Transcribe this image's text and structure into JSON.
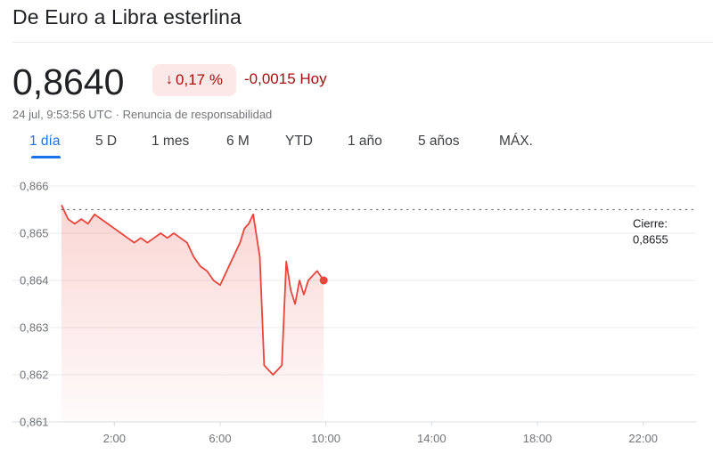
{
  "header": {
    "title": "De Euro a Libra esterlina",
    "price": "0,8640",
    "pct_change": "0,17 %",
    "pct_arrow": "↓",
    "abs_change": "-0,0015 Hoy",
    "timestamp": "24 jul, 9:53:56 UTC",
    "separator": "·",
    "disclaimer": "Renuncia de responsabilidad"
  },
  "tabs": [
    {
      "label": "1 día",
      "active": true
    },
    {
      "label": "5 D",
      "active": false
    },
    {
      "label": "1 mes",
      "active": false
    },
    {
      "label": "6 M",
      "active": false
    },
    {
      "label": "YTD",
      "active": false
    },
    {
      "label": "1 año",
      "active": false
    },
    {
      "label": "5 años",
      "active": false
    },
    {
      "label": "MÁX.",
      "active": false
    }
  ],
  "colors": {
    "negative": "#a50e0e",
    "line": "#e8453c",
    "accent": "#1a73e8"
  },
  "chart_data": {
    "type": "area",
    "title": "",
    "xlabel": "",
    "ylabel": "",
    "ylim": [
      0.861,
      0.866
    ],
    "xlim_hours": [
      0,
      24
    ],
    "yticks": [
      {
        "value": 0.866,
        "label": "0,866"
      },
      {
        "value": 0.865,
        "label": "0,865"
      },
      {
        "value": 0.864,
        "label": "0,864"
      },
      {
        "value": 0.863,
        "label": "0,863"
      },
      {
        "value": 0.862,
        "label": "0,862"
      },
      {
        "value": 0.861,
        "label": "0,861"
      }
    ],
    "xticks": [
      {
        "value": 2,
        "label": "2:00"
      },
      {
        "value": 6,
        "label": "6:00"
      },
      {
        "value": 10,
        "label": "10:00"
      },
      {
        "value": 14,
        "label": "14:00"
      },
      {
        "value": 18,
        "label": "18:00"
      },
      {
        "value": 22,
        "label": "22:00"
      }
    ],
    "previous_close": {
      "value": 0.8655,
      "label_line1": "Cierre:",
      "label_line2": "0,8655"
    },
    "grid": true,
    "series": [
      {
        "x": [
          "00:00",
          "00:15",
          "00:30",
          "00:45",
          "01:00",
          "01:15",
          "01:30",
          "01:45",
          "02:00",
          "02:15",
          "02:30",
          "02:45",
          "03:00",
          "03:15",
          "03:30",
          "03:45",
          "04:00",
          "04:15",
          "04:30",
          "04:45",
          "05:00",
          "05:15",
          "05:30",
          "05:45",
          "06:00",
          "06:15",
          "06:30",
          "06:45",
          "06:55",
          "07:05",
          "07:15",
          "07:25",
          "07:30",
          "07:40",
          "07:50",
          "08:00",
          "08:10",
          "08:20",
          "08:30",
          "08:40",
          "08:50",
          "09:00",
          "09:10",
          "09:20",
          "09:30",
          "09:40",
          "09:55"
        ],
        "y": [
          0.8656,
          0.8653,
          0.8652,
          0.8653,
          0.8652,
          0.8654,
          0.8653,
          0.8652,
          0.8651,
          0.865,
          0.8649,
          0.8648,
          0.8649,
          0.8648,
          0.8649,
          0.865,
          0.8649,
          0.865,
          0.8649,
          0.8648,
          0.8645,
          0.8643,
          0.8642,
          0.864,
          0.8639,
          0.8642,
          0.8645,
          0.8648,
          0.8651,
          0.8652,
          0.8654,
          0.8648,
          0.8645,
          0.8622,
          0.8621,
          0.862,
          0.8621,
          0.8622,
          0.8644,
          0.8638,
          0.8635,
          0.864,
          0.8637,
          0.864,
          0.8641,
          0.8642,
          0.864
        ]
      }
    ]
  }
}
